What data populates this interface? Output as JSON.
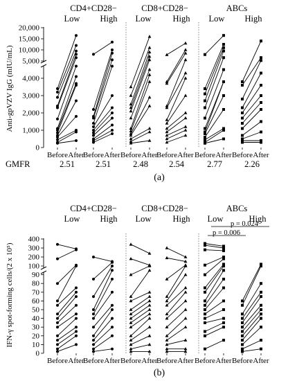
{
  "chart_data": [
    {
      "type": "line",
      "panel_label": "(a)",
      "ylabel": "Anti-gpVZV IgG (mIU/mL)",
      "y_axis": {
        "broken": true,
        "lower_range": [
          0,
          5000
        ],
        "upper_range": [
          5000,
          20000
        ],
        "ticks": [
          "0",
          "1,000",
          "2,000",
          "3,000",
          "4,000",
          "5,000",
          "10,000",
          "15,000",
          "20,000"
        ]
      },
      "x_ticks": [
        "Before",
        "After"
      ],
      "groups": [
        {
          "name": "CD4+CD28−",
          "subgroups": [
            "Low",
            "High"
          ]
        },
        {
          "name": "CD8+CD28−",
          "subgroups": [
            "Low",
            "High"
          ]
        },
        {
          "name": "ABCs",
          "subgroups": [
            "Low",
            "High"
          ]
        }
      ],
      "gmfr_label": "GMFR",
      "gmfr": [
        "2.51",
        "2.51",
        "2.48",
        "2.54",
        "2.77",
        "2.26"
      ],
      "series": [
        {
          "before": [
            3400,
            3200,
            2900,
            2400,
            2300,
            1650,
            1100,
            1000,
            850,
            700,
            600,
            450,
            300,
            250
          ],
          "after": [
            16500,
            12000,
            9500,
            8000,
            6500,
            4700,
            4100,
            3700,
            3600,
            2700,
            1800,
            1000,
            900,
            400
          ]
        },
        {
          "before": [
            8000,
            2200,
            1800,
            1700,
            1400,
            1200,
            1000,
            850,
            700,
            500,
            400,
            300
          ],
          "after": [
            13500,
            10000,
            8500,
            5500,
            4700,
            3000,
            2300,
            2000,
            1700,
            1300,
            1000,
            800
          ]
        },
        {
          "before": [
            3500,
            3000,
            2500,
            2300,
            2100,
            1700,
            1100,
            950,
            800,
            700,
            500,
            350,
            250
          ],
          "after": [
            16000,
            11000,
            9000,
            7000,
            5500,
            4500,
            4200,
            3800,
            2900,
            2400,
            1100,
            900,
            400
          ]
        },
        {
          "before": [
            7800,
            3800,
            3700,
            2400,
            2300,
            1600,
            1400,
            1100,
            900,
            700,
            500,
            300
          ],
          "after": [
            13000,
            10000,
            8500,
            5500,
            4300,
            4000,
            3000,
            2000,
            1700,
            1200,
            1000,
            700
          ]
        },
        {
          "before": [
            7900,
            3400,
            3100,
            2700,
            2300,
            1700,
            1100,
            900,
            800,
            600,
            450,
            300,
            250
          ],
          "after": [
            16500,
            12500,
            11000,
            9500,
            6500,
            4500,
            3800,
            3800,
            3000,
            2200,
            1100,
            1000,
            500
          ]
        },
        {
          "before": [
            3800,
            3600,
            2800,
            2300,
            2000,
            1700,
            1400,
            1100,
            700,
            500,
            400,
            300
          ],
          "after": [
            14000,
            6500,
            5200,
            4300,
            3600,
            3000,
            2600,
            2200,
            1500,
            900,
            400,
            300
          ]
        }
      ]
    },
    {
      "type": "line",
      "panel_label": "(b)",
      "ylabel": "IFN-γ spot-forming cells/(2 x 10⁵)",
      "y_axis": {
        "broken": true,
        "lower_range": [
          0,
          100
        ],
        "upper_range": [
          100,
          400
        ],
        "ticks": [
          "0",
          "10",
          "20",
          "30",
          "40",
          "50",
          "60",
          "70",
          "80",
          "90",
          "100",
          "200",
          "300",
          "400"
        ]
      },
      "x_ticks": [
        "Before",
        "After"
      ],
      "groups": [
        {
          "name": "CD4+CD28−",
          "subgroups": [
            "Low",
            "High"
          ]
        },
        {
          "name": "CD8+CD28−",
          "subgroups": [
            "Low",
            "High"
          ]
        },
        {
          "name": "ABCs",
          "subgroups": [
            "Low",
            "High"
          ]
        }
      ],
      "annotations": [
        {
          "text": "p = 0.006",
          "between": [
            "ABCs Low Before",
            "ABCs Low After"
          ]
        },
        {
          "text": "p = 0.024",
          "between": [
            "ABCs Low After",
            "ABCs High After"
          ]
        }
      ],
      "series": [
        {
          "before": [
            340,
            180,
            80,
            60,
            55,
            45,
            40,
            35,
            30,
            20,
            15,
            10,
            5,
            2
          ],
          "after": [
            290,
            280,
            110,
            100,
            75,
            70,
            65,
            55,
            45,
            40,
            30,
            25,
            20,
            10
          ]
        },
        {
          "before": [
            200,
            85,
            65,
            50,
            45,
            40,
            30,
            20,
            15,
            10,
            5,
            2
          ],
          "after": [
            150,
            140,
            100,
            95,
            85,
            70,
            55,
            50,
            40,
            30,
            20,
            5
          ]
        },
        {
          "before": [
            340,
            180,
            90,
            65,
            60,
            50,
            45,
            40,
            35,
            30,
            20,
            15,
            10,
            5,
            2
          ],
          "after": [
            240,
            110,
            100,
            95,
            70,
            65,
            60,
            55,
            50,
            45,
            40,
            30,
            20,
            10,
            2
          ]
        },
        {
          "before": [
            300,
            190,
            85,
            65,
            60,
            55,
            45,
            40,
            30,
            20,
            15,
            10,
            5,
            2
          ],
          "after": [
            200,
            150,
            110,
            100,
            90,
            75,
            70,
            60,
            50,
            40,
            30,
            15,
            5,
            2
          ]
        },
        {
          "before": [
            350,
            330,
            280,
            110,
            90,
            75,
            70,
            60,
            55,
            50,
            45,
            40,
            35,
            25,
            20,
            5
          ],
          "after": [
            320,
            300,
            270,
            200,
            180,
            120,
            100,
            95,
            85,
            75,
            60,
            50,
            40,
            35,
            30,
            15
          ]
        },
        {
          "before": [
            60,
            55,
            45,
            40,
            35,
            30,
            25,
            20,
            15,
            10,
            5,
            2
          ],
          "after": [
            120,
            100,
            80,
            70,
            65,
            55,
            50,
            45,
            40,
            30,
            15,
            5
          ]
        }
      ]
    }
  ]
}
